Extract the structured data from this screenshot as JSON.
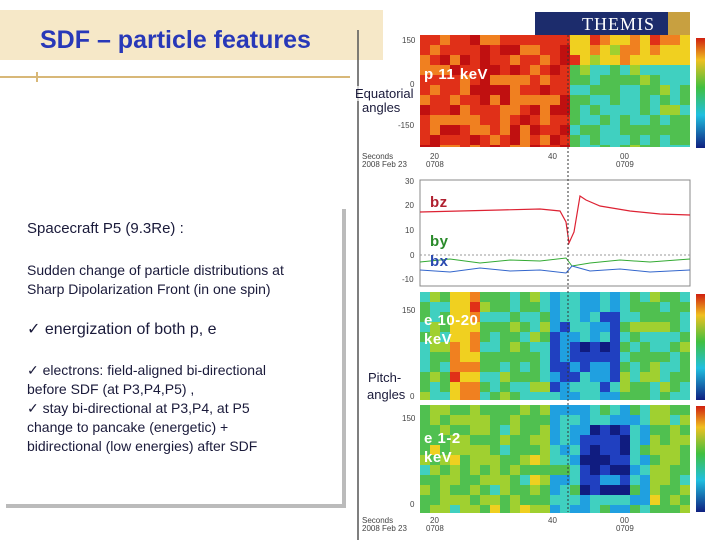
{
  "title": "SDF – particle features",
  "logo": "THEMIS",
  "body": {
    "heading": "Spacecraft P5 (9.3Re) :",
    "intro": [
      "Sudden change of particle distributions at",
      "Sharp Dipolarization Front  (in one spin)"
    ],
    "point": "✓ energization of both p, e",
    "details": [
      "✓ electrons: field-aligned bi-directional",
      "before SDF (at P3,P4,P5) ,",
      "✓ stay bi-directional at P3,P4,   at P5",
      "change to pancake  (energetic) +",
      "bidirectional (low energies)   after SDF"
    ]
  },
  "plot": {
    "equatorial": [
      "Equatorial",
      "angles"
    ],
    "pitch": [
      "Pitch-",
      "angles"
    ],
    "panels": {
      "p": "p 11 keV",
      "bz": "bz",
      "by": "by",
      "bx": "bx",
      "e_high": [
        "e 10-20",
        "keV"
      ],
      "e_low": [
        "e 1-2",
        "keV"
      ]
    },
    "p_ticks": [
      "150",
      "0",
      "-150"
    ],
    "b_ticks": [
      "30",
      "20",
      "10",
      "0",
      "-10"
    ],
    "e_high_ticks": [
      "150",
      "0"
    ],
    "e_low_ticks": [
      "150",
      "0"
    ],
    "time_axis": {
      "unit": "Seconds",
      "date": "2008 Feb 23",
      "seconds": [
        "20",
        "40",
        "00"
      ],
      "minutes": [
        "0708",
        "0709"
      ]
    }
  }
}
